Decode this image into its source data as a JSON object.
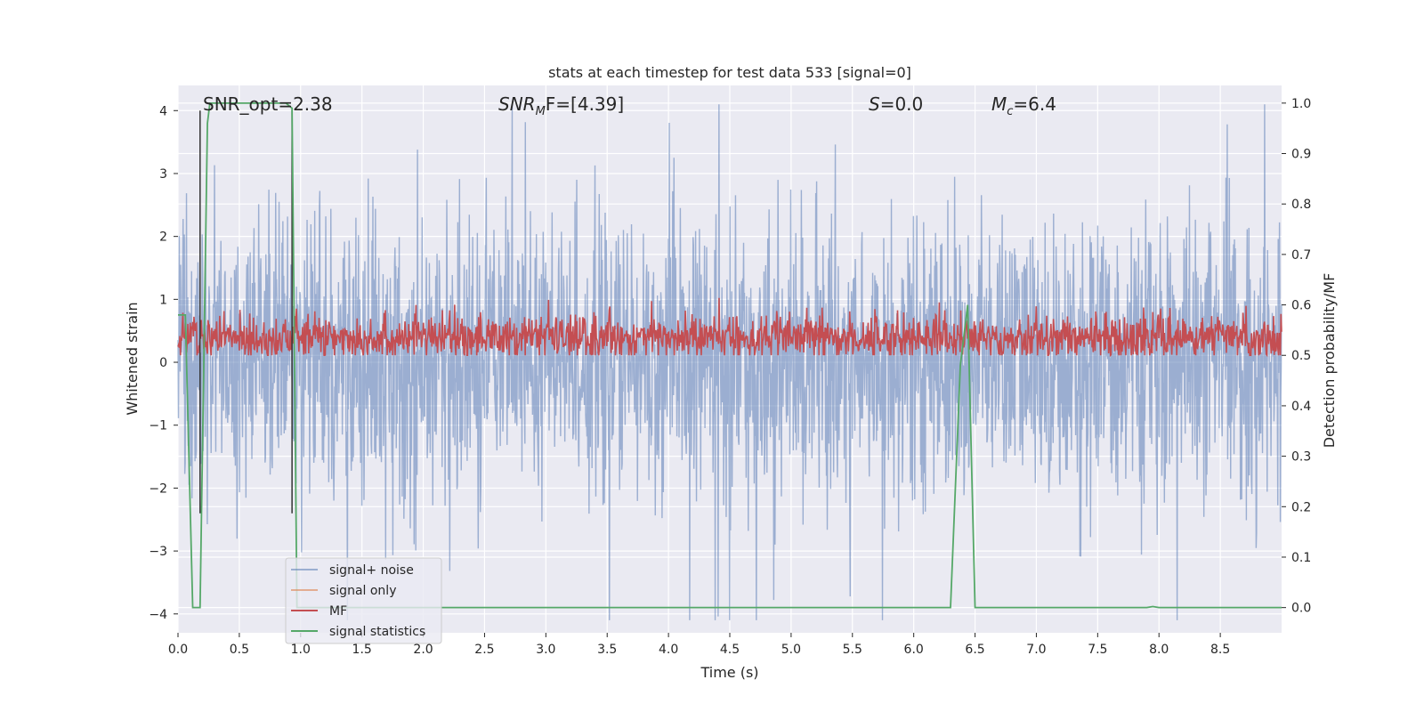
{
  "chart_data": {
    "type": "line",
    "title": "stats at each timestep for test data 533 [signal=0]",
    "xlabel": "Time (s)",
    "ylabel_left": "Whitened strain",
    "ylabel_right": "Detection probability/MF",
    "xlim": [
      0.0,
      9.0
    ],
    "ylim_left": [
      -4.3,
      4.4
    ],
    "ylim_right": [
      -0.05,
      1.035
    ],
    "xticks": [
      "0.0",
      "0.5",
      "1.0",
      "1.5",
      "2.0",
      "2.5",
      "3.0",
      "3.5",
      "4.0",
      "4.5",
      "5.0",
      "5.5",
      "6.0",
      "6.5",
      "7.0",
      "7.5",
      "8.0",
      "8.5"
    ],
    "yticks_left": [
      "4",
      "3",
      "2",
      "1",
      "0",
      "−1",
      "−2",
      "−3",
      "−4"
    ],
    "yticks_right": [
      "1.0",
      "0.9",
      "0.8",
      "0.7",
      "0.6",
      "0.5",
      "0.4",
      "0.3",
      "0.2",
      "0.1",
      "0.0"
    ],
    "grid": true,
    "legend_position": "lower-left",
    "annotations": {
      "snr_opt": "SNR_opt=2.38",
      "snr_mf_sym": "SNR",
      "snr_mf_sub": "M",
      "snr_mf_rest": "F=[4.39]",
      "s_sym": "S",
      "s_rest": "=0.0",
      "mc_sym": "M",
      "mc_sub": "c",
      "mc_rest": "=6.4"
    },
    "markers": {
      "x": [
        0.18,
        0.93
      ],
      "y_top": 4,
      "y_bottom": -2.4
    },
    "series": [
      {
        "name": "signal+ noise",
        "color": "#4c72b0",
        "kind": "noise"
      },
      {
        "name": "signal only",
        "color": "#dd8452",
        "kind": "none"
      },
      {
        "name": "MF",
        "color": "#c44e52",
        "kind": "mf"
      },
      {
        "name": "signal statistics",
        "color": "#55a868",
        "axis": "right",
        "x": [
          0.0,
          0.06,
          0.12,
          0.18,
          0.24,
          0.26,
          0.32,
          0.88,
          0.93,
          0.97,
          1.0,
          6.3,
          6.38,
          6.44,
          6.5,
          7.9,
          7.95,
          8.0,
          9.0
        ],
        "values": [
          0.58,
          0.58,
          0.0,
          0.0,
          0.96,
          1.0,
          1.0,
          1.0,
          0.99,
          0.0,
          0.0,
          0.0,
          0.48,
          0.6,
          0.0,
          0.0,
          0.002,
          0.0,
          0.0
        ]
      }
    ]
  }
}
